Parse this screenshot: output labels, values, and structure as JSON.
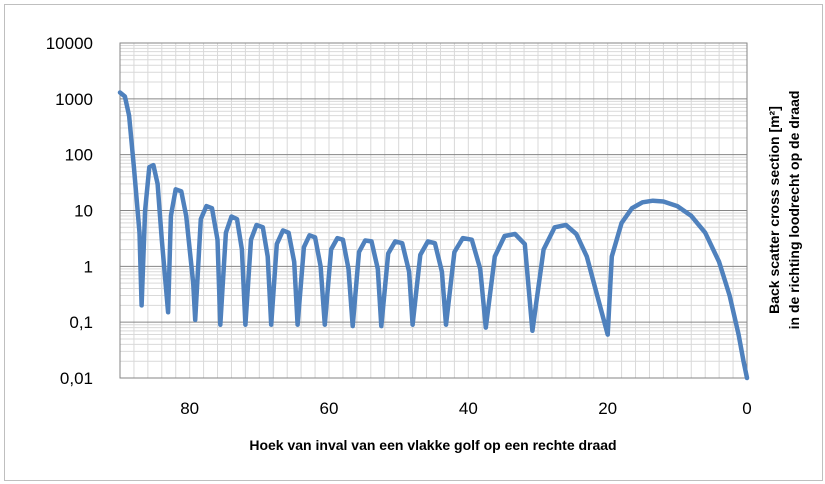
{
  "chart_data": {
    "type": "line",
    "title": "",
    "xlabel": "Hoek van inval van een vlakke golf op een rechte draad",
    "ylabel_line1": "Back scatter  cross section [m²]",
    "ylabel_line2": "in de richting loodrecht op de draad",
    "x_axis": {
      "min": 0,
      "max": 90,
      "reversed": true,
      "ticks": [
        80,
        60,
        40,
        20,
        0
      ],
      "tick_labels": [
        "80",
        "60",
        "40",
        "20",
        "0"
      ]
    },
    "y_axis": {
      "scale": "log",
      "min": 0.01,
      "max": 10000,
      "ticks": [
        0.01,
        0.1,
        1,
        10,
        100,
        1000,
        10000
      ],
      "tick_labels": [
        "0,01",
        "0,1",
        "1",
        "10",
        "100",
        "1000",
        "10000"
      ]
    },
    "grid": true,
    "legend": "none",
    "series_color": "#4f81bd",
    "series": [
      {
        "x": [
          90,
          89.3,
          88.7,
          88.0,
          87.2,
          86.9,
          86.4,
          85.8,
          85.2,
          84.6,
          84.0,
          83.1,
          82.7,
          82.0,
          81.2,
          80.5,
          79.5,
          79.2,
          78.4,
          77.6,
          76.8,
          76.0,
          75.6,
          74.8,
          74.0,
          73.2,
          72.5,
          72.0,
          71.2,
          70.4,
          69.5,
          68.8,
          68.3,
          67.5,
          66.6,
          65.8,
          65.0,
          64.5,
          63.6,
          62.8,
          62.0,
          61.2,
          60.6,
          59.7,
          58.8,
          58.0,
          57.2,
          56.6,
          55.7,
          54.8,
          53.9,
          53.0,
          52.5,
          51.5,
          50.5,
          49.5,
          48.5,
          48.0,
          46.9,
          45.8,
          44.8,
          43.8,
          43.2,
          42.0,
          40.8,
          39.5,
          38.3,
          37.5,
          36.2,
          34.8,
          33.3,
          31.9,
          30.8,
          29.2,
          27.6,
          26.0,
          24.5,
          23.0,
          21.5,
          20.0,
          19.4,
          18.0,
          16.5,
          15.0,
          13.5,
          12.0,
          10.0,
          8.0,
          6.0,
          4.0,
          2.5,
          1.2,
          0.5,
          0
        ],
        "y": [
          1300,
          1100,
          500,
          60,
          4,
          0.2,
          10,
          60,
          65,
          30,
          3,
          0.15,
          8,
          24,
          22,
          8,
          0.5,
          0.11,
          7,
          12,
          11,
          3,
          0.09,
          4,
          7.8,
          7,
          2,
          0.09,
          3,
          5.5,
          5,
          1.5,
          0.09,
          2.5,
          4.4,
          4,
          1.2,
          0.09,
          2.2,
          3.6,
          3.3,
          1,
          0.09,
          2,
          3.2,
          3,
          0.9,
          0.085,
          1.8,
          2.9,
          2.8,
          0.9,
          0.085,
          1.7,
          2.8,
          2.6,
          0.8,
          0.09,
          1.6,
          2.8,
          2.6,
          0.8,
          0.09,
          1.8,
          3.2,
          3,
          0.9,
          0.08,
          1.5,
          3.5,
          3.8,
          2.5,
          0.07,
          2,
          5,
          5.5,
          3.8,
          1.5,
          0.3,
          0.06,
          1.5,
          6,
          11,
          14,
          15,
          14.5,
          12,
          8,
          4,
          1.2,
          0.3,
          0.06,
          0.02,
          0.01
        ]
      }
    ]
  }
}
